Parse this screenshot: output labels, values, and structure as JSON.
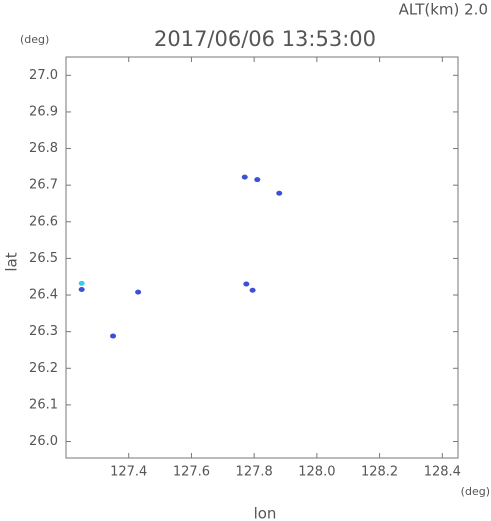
{
  "chart_data": {
    "type": "scatter",
    "title": "2017/06/06 13:53:00",
    "annotation": "ALT(km) 2.0",
    "y_unit": "(deg)",
    "x_unit": "(deg)",
    "xlabel": "lon",
    "ylabel": "lat",
    "xlim": [
      127.2,
      128.45
    ],
    "ylim": [
      25.955,
      27.05
    ],
    "xticks": [
      127.4,
      127.6,
      127.8,
      {
        "value": 128.0,
        "label": "128.0"
      },
      128.2,
      128.4
    ],
    "yticks": [
      {
        "value": 26.0,
        "label": "26.0"
      },
      26.1,
      26.2,
      26.3,
      26.4,
      26.5,
      26.6,
      26.7,
      26.8,
      26.9,
      {
        "value": 27.0,
        "label": "27.0"
      }
    ],
    "series": [
      {
        "color": "#3b4fd8",
        "x": [
          127.25,
          127.43,
          127.35,
          127.775,
          127.795,
          127.81,
          127.88,
          127.77
        ],
        "values": [
          26.415,
          26.408,
          26.288,
          26.43,
          26.413,
          26.715,
          26.678,
          26.722
        ]
      },
      {
        "color": "#3ec8ee",
        "x": [
          127.25
        ],
        "values": [
          26.432
        ]
      }
    ]
  }
}
